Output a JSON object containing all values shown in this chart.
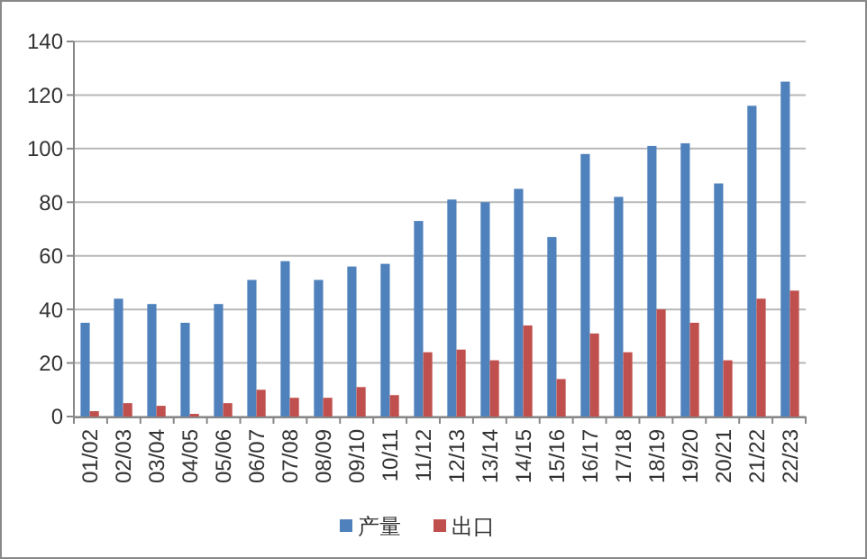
{
  "chart_data": {
    "type": "bar",
    "categories": [
      "01/02",
      "02/03",
      "03/04",
      "04/05",
      "05/06",
      "06/07",
      "07/08",
      "08/09",
      "09/10",
      "10/11",
      "11/12",
      "12/13",
      "13/14",
      "14/15",
      "15/16",
      "16/17",
      "17/18",
      "18/19",
      "19/20",
      "20/21",
      "21/22",
      "22/23"
    ],
    "series": [
      {
        "name": "产量",
        "color": "#4f81bd",
        "values": [
          35,
          44,
          42,
          35,
          42,
          51,
          58,
          51,
          56,
          57,
          73,
          81,
          80,
          85,
          67,
          98,
          82,
          101,
          102,
          87,
          116,
          125
        ]
      },
      {
        "name": "出口",
        "color": "#c0504d",
        "values": [
          2,
          5,
          4,
          1,
          5,
          10,
          7,
          7,
          11,
          8,
          24,
          25,
          21,
          34,
          14,
          31,
          24,
          40,
          35,
          21,
          44,
          47
        ]
      }
    ],
    "ylim": [
      0,
      140
    ],
    "yticks": [
      0,
      20,
      40,
      60,
      80,
      100,
      120,
      140
    ],
    "grid": "y",
    "legend": "bottom"
  }
}
